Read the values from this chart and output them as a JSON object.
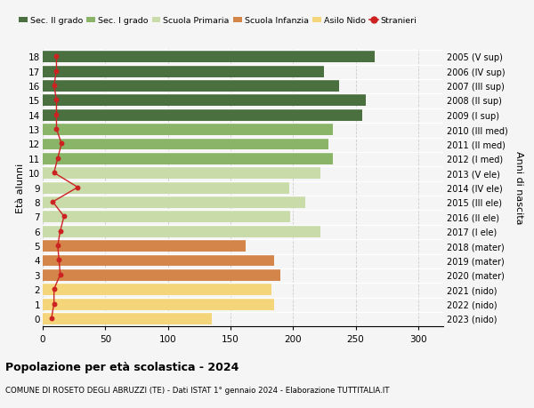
{
  "ages": [
    0,
    1,
    2,
    3,
    4,
    5,
    6,
    7,
    8,
    9,
    10,
    11,
    12,
    13,
    14,
    15,
    16,
    17,
    18
  ],
  "values": [
    135,
    185,
    183,
    190,
    185,
    162,
    222,
    198,
    210,
    197,
    222,
    232,
    228,
    232,
    255,
    258,
    237,
    225,
    265
  ],
  "stranieri": [
    7,
    9,
    9,
    14,
    13,
    12,
    14,
    17,
    8,
    28,
    9,
    12,
    15,
    11,
    11,
    11,
    9,
    11,
    11
  ],
  "right_labels": [
    "2023 (nido)",
    "2022 (nido)",
    "2021 (nido)",
    "2020 (mater)",
    "2019 (mater)",
    "2018 (mater)",
    "2017 (I ele)",
    "2016 (II ele)",
    "2015 (III ele)",
    "2014 (IV ele)",
    "2013 (V ele)",
    "2012 (I med)",
    "2011 (II med)",
    "2010 (III med)",
    "2009 (I sup)",
    "2008 (II sup)",
    "2007 (III sup)",
    "2006 (IV sup)",
    "2005 (V sup)"
  ],
  "bar_colors": [
    "#f5d57a",
    "#f5d57a",
    "#f5d57a",
    "#d4854a",
    "#d4854a",
    "#d4854a",
    "#c8dba8",
    "#c8dba8",
    "#c8dba8",
    "#c8dba8",
    "#c8dba8",
    "#8ab568",
    "#8ab568",
    "#8ab568",
    "#4a7040",
    "#4a7040",
    "#4a7040",
    "#4a7040",
    "#4a7040"
  ],
  "legend_labels": [
    "Sec. II grado",
    "Sec. I grado",
    "Scuola Primaria",
    "Scuola Infanzia",
    "Asilo Nido",
    "Stranieri"
  ],
  "legend_colors": [
    "#4a7040",
    "#8ab568",
    "#c8dba8",
    "#d4854a",
    "#f5d57a",
    "#cc2222"
  ],
  "stranieri_color": "#cc2222",
  "title_bold": "Popolazione per età scolastica - 2024",
  "subtitle": "COMUNE DI ROSETO DEGLI ABRUZZI (TE) - Dati ISTAT 1° gennaio 2024 - Elaborazione TUTTITALIA.IT",
  "ylabel_left": "Età alunni",
  "ylabel_right": "Anni di nascita",
  "xlim": [
    0,
    320
  ],
  "background_color": "#f5f5f5"
}
